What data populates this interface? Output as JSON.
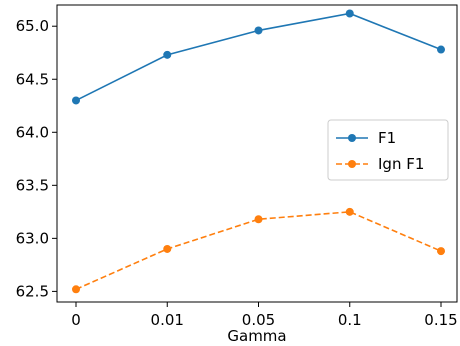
{
  "chart_data": {
    "type": "line",
    "title": "",
    "xlabel": "Gamma",
    "ylabel": "",
    "categories": [
      "0",
      "0.01",
      "0.05",
      "0.1",
      "0.15"
    ],
    "ylim": [
      62.4,
      65.2
    ],
    "yticks": [
      62.5,
      63.0,
      63.5,
      64.0,
      64.5,
      65.0
    ],
    "ytick_labels": [
      "62.5",
      "63.0",
      "63.5",
      "64.0",
      "64.5",
      "65.0"
    ],
    "grid": false,
    "legend_position": "center-right",
    "series": [
      {
        "name": "F1",
        "values": [
          64.3,
          64.73,
          64.96,
          65.12,
          64.78
        ],
        "color": "#1f77b4",
        "dash": "solid",
        "marker": "circle"
      },
      {
        "name": "Ign F1",
        "values": [
          62.52,
          62.9,
          63.18,
          63.25,
          62.88
        ],
        "color": "#ff7f0e",
        "dash": "dashed",
        "marker": "circle"
      }
    ]
  }
}
